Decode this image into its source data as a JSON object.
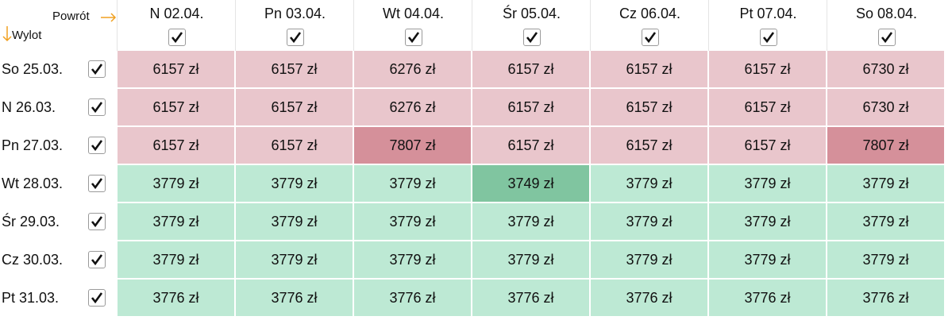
{
  "corner": {
    "return_label": "Powrót",
    "depart_label": "Wylot"
  },
  "columns": [
    "N 02.04.",
    "Pn 03.04.",
    "Wt 04.04.",
    "Śr 05.04.",
    "Cz 06.04.",
    "Pt 07.04.",
    "So 08.04."
  ],
  "rows": [
    {
      "label": "So 25.03.",
      "cells": [
        {
          "text": "6157 zł",
          "color": "#e9c6cc"
        },
        {
          "text": "6157 zł",
          "color": "#e9c6cc"
        },
        {
          "text": "6276 zł",
          "color": "#e9c6cc"
        },
        {
          "text": "6157 zł",
          "color": "#e9c6cc"
        },
        {
          "text": "6157 zł",
          "color": "#e9c6cc"
        },
        {
          "text": "6157 zł",
          "color": "#e9c6cc"
        },
        {
          "text": "6730 zł",
          "color": "#e9c6cc"
        }
      ]
    },
    {
      "label": "N 26.03.",
      "cells": [
        {
          "text": "6157 zł",
          "color": "#e9c6cc"
        },
        {
          "text": "6157 zł",
          "color": "#e9c6cc"
        },
        {
          "text": "6276 zł",
          "color": "#e9c6cc"
        },
        {
          "text": "6157 zł",
          "color": "#e9c6cc"
        },
        {
          "text": "6157 zł",
          "color": "#e9c6cc"
        },
        {
          "text": "6157 zł",
          "color": "#e9c6cc"
        },
        {
          "text": "6730 zł",
          "color": "#e9c6cc"
        }
      ]
    },
    {
      "label": "Pn 27.03.",
      "cells": [
        {
          "text": "6157 zł",
          "color": "#e9c6cc"
        },
        {
          "text": "6157 zł",
          "color": "#e9c6cc"
        },
        {
          "text": "7807 zł",
          "color": "#d5909a"
        },
        {
          "text": "6157 zł",
          "color": "#e9c6cc"
        },
        {
          "text": "6157 zł",
          "color": "#e9c6cc"
        },
        {
          "text": "6157 zł",
          "color": "#e9c6cc"
        },
        {
          "text": "7807 zł",
          "color": "#d5909a"
        }
      ]
    },
    {
      "label": "Wt 28.03.",
      "cells": [
        {
          "text": "3779 zł",
          "color": "#bde9d4"
        },
        {
          "text": "3779 zł",
          "color": "#bde9d4"
        },
        {
          "text": "3779 zł",
          "color": "#bde9d4"
        },
        {
          "text": "3749 zł",
          "color": "#80c5a0"
        },
        {
          "text": "3779 zł",
          "color": "#bde9d4"
        },
        {
          "text": "3779 zł",
          "color": "#bde9d4"
        },
        {
          "text": "3779 zł",
          "color": "#bde9d4"
        }
      ]
    },
    {
      "label": "Śr 29.03.",
      "cells": [
        {
          "text": "3779 zł",
          "color": "#bde9d4"
        },
        {
          "text": "3779 zł",
          "color": "#bde9d4"
        },
        {
          "text": "3779 zł",
          "color": "#bde9d4"
        },
        {
          "text": "3779 zł",
          "color": "#bde9d4"
        },
        {
          "text": "3779 zł",
          "color": "#bde9d4"
        },
        {
          "text": "3779 zł",
          "color": "#bde9d4"
        },
        {
          "text": "3779 zł",
          "color": "#bde9d4"
        }
      ]
    },
    {
      "label": "Cz 30.03.",
      "cells": [
        {
          "text": "3779 zł",
          "color": "#bde9d4"
        },
        {
          "text": "3779 zł",
          "color": "#bde9d4"
        },
        {
          "text": "3779 zł",
          "color": "#bde9d4"
        },
        {
          "text": "3779 zł",
          "color": "#bde9d4"
        },
        {
          "text": "3779 zł",
          "color": "#bde9d4"
        },
        {
          "text": "3779 zł",
          "color": "#bde9d4"
        },
        {
          "text": "3779 zł",
          "color": "#bde9d4"
        }
      ]
    },
    {
      "label": "Pt 31.03.",
      "cells": [
        {
          "text": "3776 zł",
          "color": "#bde9d4"
        },
        {
          "text": "3776 zł",
          "color": "#bde9d4"
        },
        {
          "text": "3776 zł",
          "color": "#bde9d4"
        },
        {
          "text": "3776 zł",
          "color": "#bde9d4"
        },
        {
          "text": "3776 zł",
          "color": "#bde9d4"
        },
        {
          "text": "3776 zł",
          "color": "#bde9d4"
        },
        {
          "text": "3776 zł",
          "color": "#bde9d4"
        }
      ]
    }
  ]
}
